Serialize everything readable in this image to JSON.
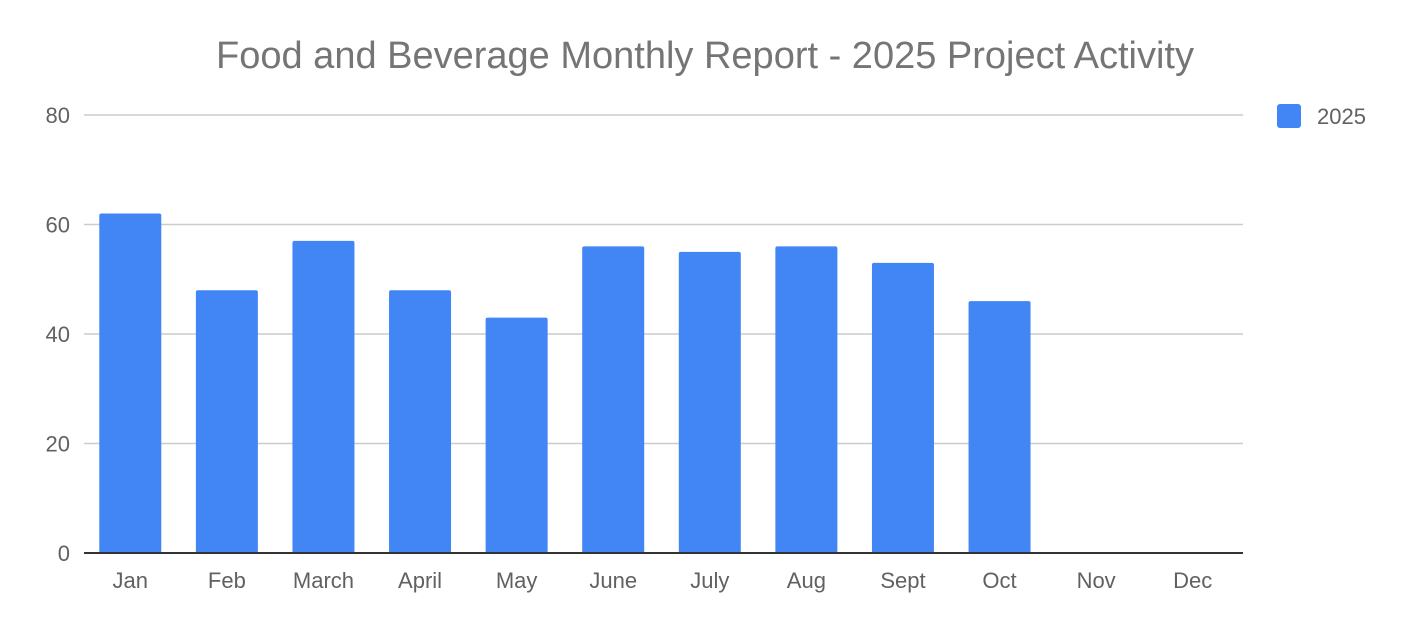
{
  "chart_data": {
    "type": "bar",
    "title": "Food and Beverage Monthly Report - 2025 Project Activity",
    "xlabel": "",
    "ylabel": "",
    "categories": [
      "Jan",
      "Feb",
      "March",
      "April",
      "May",
      "June",
      "July",
      "Aug",
      "Sept",
      "Oct",
      "Nov",
      "Dec"
    ],
    "series": [
      {
        "name": "2025",
        "color": "#4285f4",
        "values": [
          62,
          48,
          57,
          48,
          43,
          56,
          55,
          56,
          53,
          46,
          null,
          null
        ]
      }
    ],
    "ylim": [
      0,
      80
    ],
    "yticks": [
      0,
      20,
      40,
      60,
      80
    ],
    "grid": true,
    "legend_position": "right-top"
  }
}
